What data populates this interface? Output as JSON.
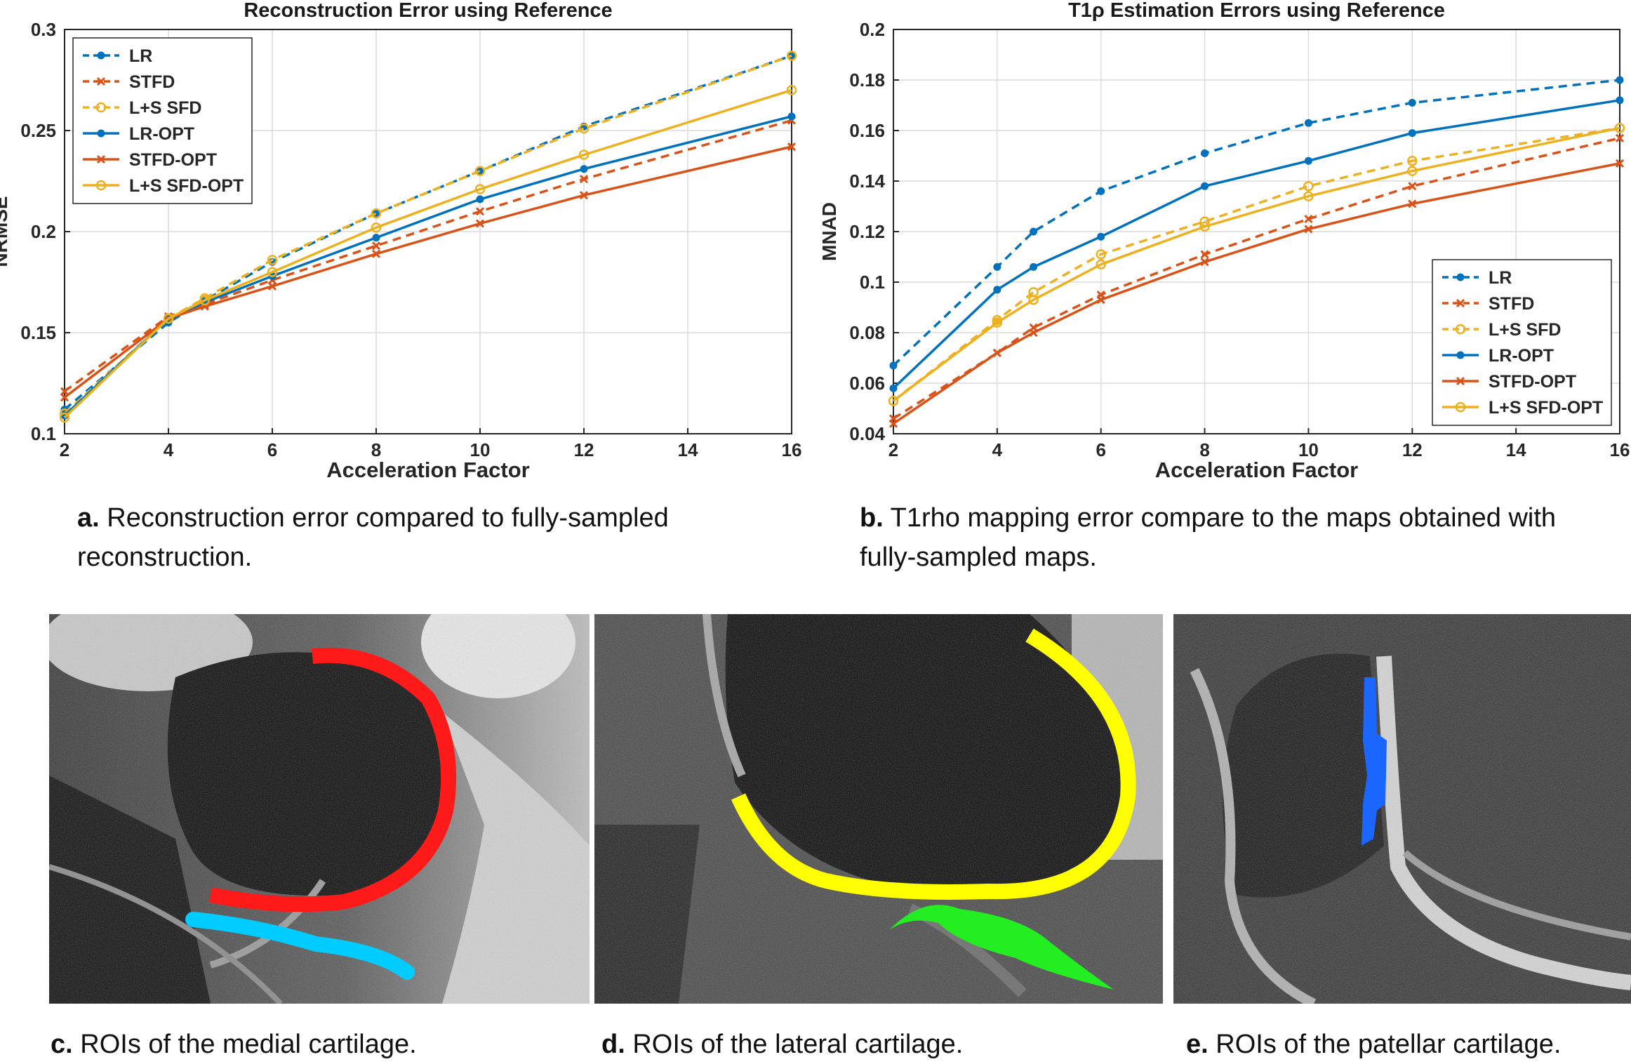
{
  "chart_data": [
    {
      "type": "line",
      "title": "Reconstruction Error using Reference",
      "xlabel": "Acceleration Factor",
      "ylabel": "NRMSE",
      "x": [
        2,
        4,
        4.7,
        6,
        8,
        10,
        12,
        16
      ],
      "xlim": [
        2,
        16
      ],
      "ylim": [
        0.1,
        0.3
      ],
      "xticks": [
        "2",
        "4",
        "6",
        "8",
        "10",
        "12",
        "14",
        "16"
      ],
      "yticks": [
        "0.1",
        "0.15",
        "0.2",
        "0.25",
        "0.3"
      ],
      "legend_position": "top-left",
      "series": [
        {
          "name": "LR",
          "values": [
            0.112,
            0.155,
            0.166,
            0.185,
            0.209,
            0.23,
            0.252,
            0.287
          ],
          "color": "#0072BD",
          "dash": true,
          "marker": "dot"
        },
        {
          "name": "STFD",
          "values": [
            0.121,
            0.158,
            0.164,
            0.176,
            0.193,
            0.21,
            0.226,
            0.255
          ],
          "color": "#D95319",
          "dash": true,
          "marker": "x"
        },
        {
          "name": "L+S SFD",
          "values": [
            0.11,
            0.157,
            0.167,
            0.186,
            0.209,
            0.23,
            0.251,
            0.287
          ],
          "color": "#EDB120",
          "dash": true,
          "marker": "o"
        },
        {
          "name": "LR-OPT",
          "values": [
            0.109,
            0.157,
            0.165,
            0.178,
            0.197,
            0.216,
            0.231,
            0.257
          ],
          "color": "#0072BD",
          "dash": false,
          "marker": "dot"
        },
        {
          "name": "STFD-OPT",
          "values": [
            0.118,
            0.157,
            0.163,
            0.173,
            0.189,
            0.204,
            0.218,
            0.242
          ],
          "color": "#D95319",
          "dash": false,
          "marker": "x"
        },
        {
          "name": "L+S SFD-OPT",
          "values": [
            0.108,
            0.157,
            0.166,
            0.18,
            0.202,
            0.221,
            0.238,
            0.27
          ],
          "color": "#EDB120",
          "dash": false,
          "marker": "o"
        }
      ]
    },
    {
      "type": "line",
      "title": "T1ρ Estimation Errors using Reference",
      "xlabel": "Acceleration Factor",
      "ylabel": "MNAD",
      "x": [
        2,
        4,
        4.7,
        6,
        8,
        10,
        12,
        16
      ],
      "xlim": [
        2,
        16
      ],
      "ylim": [
        0.04,
        0.2
      ],
      "xticks": [
        "2",
        "4",
        "6",
        "8",
        "10",
        "12",
        "14",
        "16"
      ],
      "yticks": [
        "0.04",
        "0.06",
        "0.08",
        "0.1",
        "0.12",
        "0.14",
        "0.16",
        "0.18",
        "0.2"
      ],
      "legend_position": "bottom-right",
      "series": [
        {
          "name": "LR",
          "values": [
            0.067,
            0.106,
            0.12,
            0.136,
            0.151,
            0.163,
            0.171,
            0.18
          ],
          "color": "#0072BD",
          "dash": true,
          "marker": "dot"
        },
        {
          "name": "STFD",
          "values": [
            0.046,
            0.072,
            0.082,
            0.095,
            0.111,
            0.125,
            0.138,
            0.157
          ],
          "color": "#D95319",
          "dash": true,
          "marker": "x"
        },
        {
          "name": "L+S SFD",
          "values": [
            0.053,
            0.085,
            0.096,
            0.111,
            0.124,
            0.138,
            0.148,
            0.161
          ],
          "color": "#EDB120",
          "dash": true,
          "marker": "o"
        },
        {
          "name": "LR-OPT",
          "values": [
            0.058,
            0.097,
            0.106,
            0.118,
            0.138,
            0.148,
            0.159,
            0.172
          ],
          "color": "#0072BD",
          "dash": false,
          "marker": "dot"
        },
        {
          "name": "STFD-OPT",
          "values": [
            0.044,
            0.072,
            0.08,
            0.093,
            0.108,
            0.121,
            0.131,
            0.147
          ],
          "color": "#D95319",
          "dash": false,
          "marker": "x"
        },
        {
          "name": "L+S SFD-OPT",
          "values": [
            0.053,
            0.084,
            0.093,
            0.107,
            0.122,
            0.134,
            0.144,
            0.161
          ],
          "color": "#EDB120",
          "dash": false,
          "marker": "o"
        }
      ]
    }
  ],
  "captions": {
    "a": {
      "label": "a.",
      "text": "Reconstruction error compared to fully-sampled reconstruction."
    },
    "b": {
      "label": "b.",
      "text": "T1rho mapping error compare to the maps obtained with fully-sampled maps."
    },
    "c": {
      "label": "c.",
      "text": "ROIs of the medial cartilage."
    },
    "d": {
      "label": "d.",
      "text": "ROIs of the lateral cartilage."
    },
    "e": {
      "label": "e.",
      "text": "ROIs of the patellar cartilage."
    }
  },
  "roi_colors": {
    "red": "#FF1A1A",
    "cyan": "#00CCFF",
    "yellow": "#FFFF00",
    "green": "#22EE22",
    "blue": "#1A66FF"
  }
}
